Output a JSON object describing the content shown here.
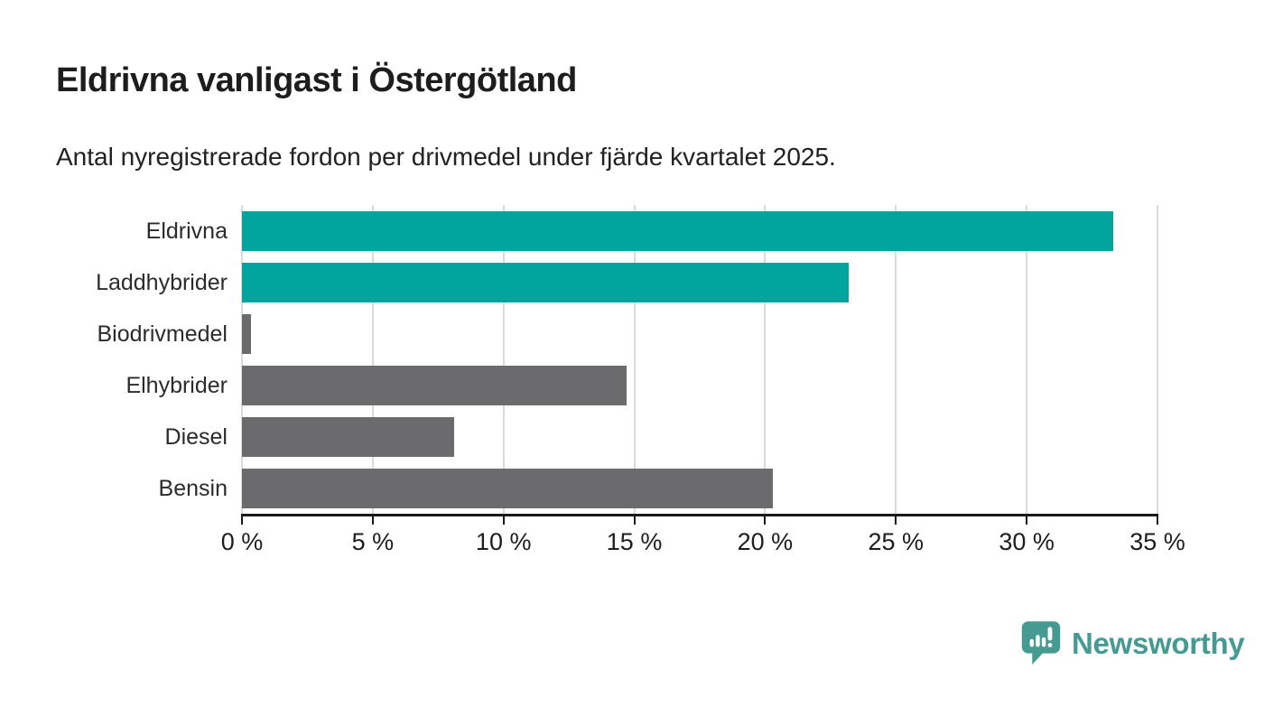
{
  "header": {
    "title": "Eldrivna vanligast i Östergötland",
    "subtitle": "Antal nyregistrerade fordon per drivmedel under fjärde kvartalet 2025."
  },
  "chart_data": {
    "type": "bar",
    "orientation": "horizontal",
    "title": "Eldrivna vanligast i Östergötland",
    "subtitle": "Antal nyregistrerade fordon per drivmedel under fjärde kvartalet 2025.",
    "categories": [
      "Eldrivna",
      "Laddhybrider",
      "Biodrivmedel",
      "Elhybrider",
      "Diesel",
      "Bensin"
    ],
    "values": [
      33.3,
      23.2,
      0.35,
      14.7,
      8.1,
      20.3
    ],
    "unit": "%",
    "xlim": [
      0,
      35
    ],
    "x_ticks": [
      0,
      5,
      10,
      15,
      20,
      25,
      30,
      35
    ],
    "x_tick_labels": [
      "0 %",
      "5 %",
      "10 %",
      "15 %",
      "20 %",
      "25 %",
      "30 %",
      "35 %"
    ],
    "grid": "vertical-only",
    "legend": "none",
    "colors": {
      "highlight": "#00a49c",
      "default": "#6b6b6e",
      "bar_colors": [
        "#00a49c",
        "#00a49c",
        "#6b6b6e",
        "#6b6b6e",
        "#6b6b6e",
        "#6b6b6e"
      ],
      "gridline": "#dadada",
      "axis": "#1a1a1a"
    }
  },
  "branding": {
    "logo_text": "Newsworthy",
    "logo_color": "#459a92",
    "logo_icon": "newsworthy-speech-bubble-chart-icon"
  }
}
